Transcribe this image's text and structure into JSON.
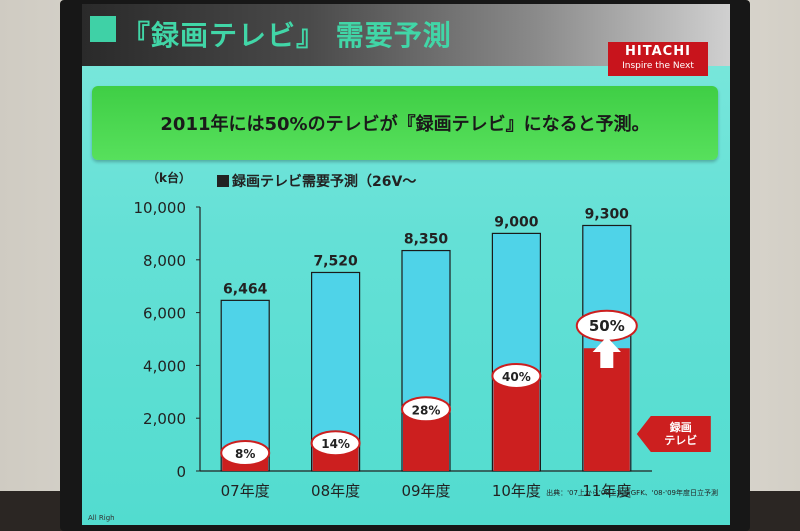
{
  "slide": {
    "title": "『録画テレビ』 需要予測",
    "logo_name": "HITACHI",
    "logo_tagline": "Inspire the Next",
    "banner_text": "2011年には50%のテレビが『録画テレビ』になると予測。",
    "unit_label": "（k台）",
    "chart_title": "録画テレビ需要予測（26V～",
    "source": "出典：'07上から'08上実績GFK、'08-'09年度日立予測",
    "corner_text": "All Righ"
  },
  "colors": {
    "total_bar": "#4fd3e8",
    "recording_tv": "#cc1f1f",
    "bar_edge": "#1a1a1a",
    "screen_bg": "#63dfd4",
    "title_green": "#41d6a7",
    "banner_green": "#4fd853"
  },
  "chart_data": {
    "type": "bar",
    "title": "録画テレビ需要予測（26V～",
    "ylabel": "（k台）",
    "xlabel": "",
    "categories": [
      "07年度",
      "08年度",
      "09年度",
      "10年度",
      "11年度"
    ],
    "ylim": [
      0,
      10000
    ],
    "yticks": [
      0,
      2000,
      4000,
      6000,
      8000,
      10000
    ],
    "ytick_labels": [
      "0",
      "2,000",
      "4,000",
      "6,000",
      "8,000",
      "10,000"
    ],
    "series": [
      {
        "name": "",
        "values": [
          6464,
          7520,
          8350,
          9000,
          9300
        ],
        "labels": [
          "6,464",
          "7,520",
          "8,350",
          "9,000",
          "9,300"
        ]
      },
      {
        "name": "録画テレビ",
        "values": [
          517,
          1053,
          2338,
          3600,
          4650
        ],
        "share_labels": [
          "8%",
          "14%",
          "28%",
          "40%",
          "50%"
        ]
      }
    ],
    "grid": false,
    "legend": "right",
    "legend_label": "録画\nテレビ",
    "annotation": "arrow-up on 11年度"
  }
}
